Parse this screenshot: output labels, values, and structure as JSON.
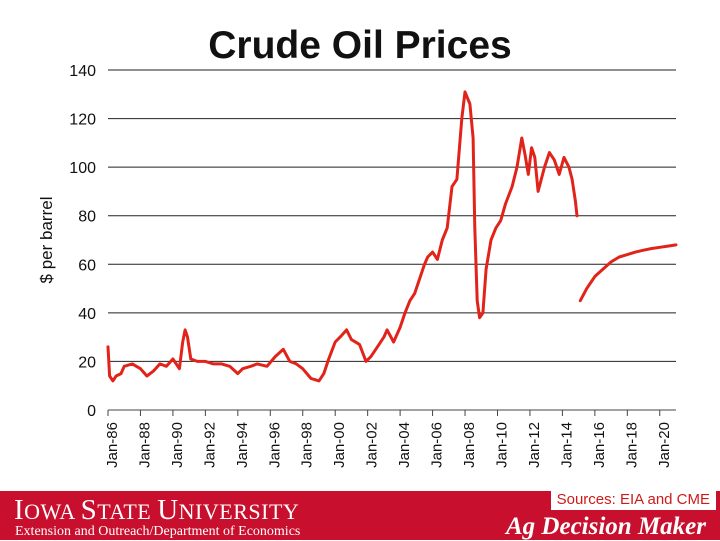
{
  "chart_data": {
    "type": "line",
    "title": "Crude Oil Prices",
    "ylabel": "$ per barrel",
    "xlabel": "",
    "ylim": [
      0,
      140
    ],
    "yticks": [
      0,
      20,
      40,
      60,
      80,
      100,
      120,
      140
    ],
    "xticks": [
      "Jan-86",
      "Jan-88",
      "Jan-90",
      "Jan-92",
      "Jan-94",
      "Jan-96",
      "Jan-98",
      "Jan-00",
      "Jan-02",
      "Jan-04",
      "Jan-06",
      "Jan-08",
      "Jan-10",
      "Jan-12",
      "Jan-14",
      "Jan-16",
      "Jan-18",
      "Jan-20"
    ],
    "x_unit": "year",
    "grid": "horizontal",
    "line_color": "#e2231a",
    "series": [
      {
        "x": [
          1986.0,
          1986.1,
          1986.3,
          1986.5,
          1986.8,
          1987.0,
          1987.5,
          1988.0,
          1988.4,
          1988.8,
          1989.2,
          1989.6,
          1990.0,
          1990.4,
          1990.6,
          1990.75,
          1990.9,
          1991.1,
          1991.5,
          1992.0,
          1992.5,
          1993.0,
          1993.5,
          1994.0,
          1994.3,
          1994.8,
          1995.2,
          1995.8,
          1996.3,
          1996.8,
          1997.2,
          1997.6,
          1998.0,
          1998.5,
          1999.0,
          1999.3,
          1999.6,
          2000.0,
          2000.3,
          2000.7,
          2001.0,
          2001.5,
          2001.9,
          2002.2,
          2002.6,
          2003.0,
          2003.2,
          2003.6,
          2004.0,
          2004.3,
          2004.6,
          2004.9,
          2005.2,
          2005.5,
          2005.7,
          2006.0,
          2006.3,
          2006.6,
          2006.9,
          2007.2,
          2007.5,
          2007.8,
          2008.0,
          2008.3,
          2008.5,
          2008.6,
          2008.75,
          2008.9,
          2009.1,
          2009.3,
          2009.6,
          2009.9,
          2010.2,
          2010.5,
          2010.9,
          2011.2,
          2011.5,
          2011.7,
          2011.9,
          2012.1,
          2012.3,
          2012.5,
          2012.7,
          2012.9,
          2013.2,
          2013.5,
          2013.8,
          2014.1,
          2014.4,
          2014.6,
          2014.8,
          2014.9
        ],
        "values": [
          26,
          14,
          12,
          14,
          15,
          18,
          19,
          17,
          14,
          16,
          19,
          18,
          21,
          17,
          28,
          33,
          30,
          21,
          20,
          20,
          19,
          19,
          18,
          15,
          17,
          18,
          19,
          18,
          22,
          25,
          20,
          19,
          17,
          13,
          12,
          15,
          21,
          28,
          30,
          33,
          29,
          27,
          20,
          22,
          26,
          30,
          33,
          28,
          34,
          40,
          45,
          48,
          54,
          60,
          63,
          65,
          62,
          70,
          75,
          92,
          95,
          120,
          131,
          126,
          112,
          75,
          45,
          38,
          40,
          58,
          70,
          75,
          78,
          85,
          92,
          100,
          112,
          105,
          97,
          108,
          104,
          90,
          95,
          100,
          106,
          103,
          97,
          104,
          100,
          95,
          86,
          80
        ]
      },
      {
        "x": [
          2015.1,
          2015.5,
          2016.0,
          2016.5,
          2017.0,
          2017.5,
          2018.0,
          2018.5,
          2019.0,
          2019.5,
          2020.0,
          2020.5,
          2021.0
        ],
        "values": [
          45,
          50,
          55,
          58,
          61,
          63,
          64,
          65,
          65.8,
          66.5,
          67,
          67.5,
          68
        ]
      }
    ]
  },
  "footer": {
    "university_first": "I",
    "university_rest1": "OWA ",
    "university_s": "S",
    "university_rest2": "TATE ",
    "university_u": "U",
    "university_rest3": "NIVERSITY",
    "department": "Extension and Outreach/Department of Economics",
    "sources": "Sources: EIA and CME",
    "brand": "Ag Decision Maker"
  }
}
